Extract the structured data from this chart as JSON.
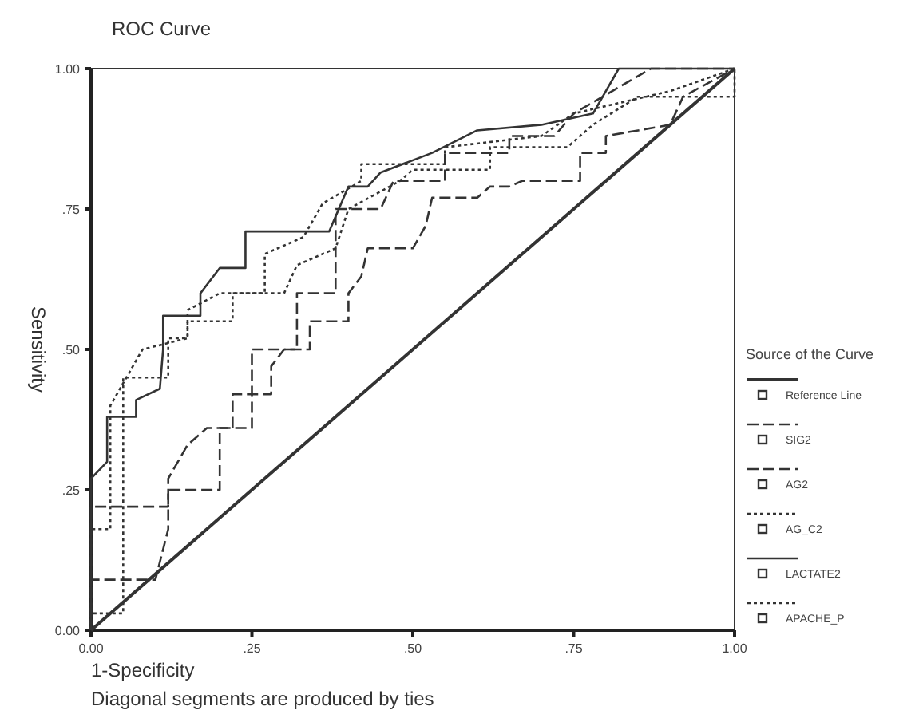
{
  "chart_data": {
    "type": "line",
    "title": "ROC Curve",
    "xlabel": "1-Specificity",
    "ylabel": "Sensitivity",
    "legend_title": "Source of the Curve",
    "annotations": [
      "Diagonal segments are produced by ties"
    ],
    "xlim": [
      0,
      1
    ],
    "ylim": [
      0,
      1
    ],
    "xticks": [
      {
        "value": 0,
        "label": "0.00"
      },
      {
        "value": 0.25,
        "label": ".25"
      },
      {
        "value": 0.5,
        "label": ".50"
      },
      {
        "value": 0.75,
        "label": ".75"
      },
      {
        "value": 1,
        "label": "1.00"
      }
    ],
    "yticks": [
      {
        "value": 0,
        "label": "0.00"
      },
      {
        "value": 0.25,
        "label": ".25"
      },
      {
        "value": 0.5,
        "label": ".50"
      },
      {
        "value": 0.75,
        "label": ".75"
      },
      {
        "value": 1,
        "label": "1.00"
      }
    ],
    "grid": false,
    "legend": "right",
    "marker": "none",
    "series": [
      {
        "name": "Reference Line",
        "color": "#333333",
        "line_style": "solid",
        "x": [
          0,
          1
        ],
        "values": [
          0,
          1
        ]
      },
      {
        "name": "SIG2",
        "color": "#333333",
        "line_style": "dashed",
        "x": [
          0,
          0,
          0.1,
          0.12,
          0.12,
          0.2,
          0.2,
          0.25,
          0.25,
          0.32,
          0.32,
          0.38,
          0.38,
          0.45,
          0.47,
          0.55,
          0.55,
          0.65,
          0.65,
          0.72,
          0.75,
          0.87,
          1
        ],
        "values": [
          0,
          0.09,
          0.09,
          0.18,
          0.25,
          0.25,
          0.36,
          0.36,
          0.5,
          0.5,
          0.6,
          0.6,
          0.75,
          0.75,
          0.8,
          0.8,
          0.85,
          0.85,
          0.88,
          0.88,
          0.92,
          1,
          1
        ]
      },
      {
        "name": "AG2",
        "color": "#333333",
        "line_style": "dashed",
        "x": [
          0,
          0,
          0.12,
          0.12,
          0.15,
          0.18,
          0.22,
          0.22,
          0.28,
          0.28,
          0.3,
          0.34,
          0.34,
          0.4,
          0.4,
          0.42,
          0.43,
          0.5,
          0.52,
          0.53,
          0.6,
          0.62,
          0.65,
          0.67,
          0.76,
          0.76,
          0.8,
          0.8,
          0.9,
          0.92,
          1
        ],
        "values": [
          0,
          0.22,
          0.22,
          0.27,
          0.33,
          0.36,
          0.36,
          0.42,
          0.42,
          0.47,
          0.5,
          0.5,
          0.55,
          0.55,
          0.6,
          0.63,
          0.68,
          0.68,
          0.72,
          0.77,
          0.77,
          0.79,
          0.79,
          0.8,
          0.8,
          0.85,
          0.85,
          0.88,
          0.9,
          0.95,
          1
        ]
      },
      {
        "name": "AG_C2",
        "color": "#333333",
        "line_style": "dotted",
        "x": [
          0,
          0,
          0.03,
          0.03,
          0.08,
          0.15,
          0.15,
          0.2,
          0.27,
          0.27,
          0.33,
          0.36,
          0.42,
          0.42,
          0.55,
          0.55,
          0.7,
          0.75,
          0.9,
          1
        ],
        "values": [
          0,
          0.18,
          0.18,
          0.4,
          0.5,
          0.52,
          0.57,
          0.6,
          0.6,
          0.67,
          0.7,
          0.76,
          0.8,
          0.83,
          0.83,
          0.86,
          0.88,
          0.92,
          0.96,
          1
        ]
      },
      {
        "name": "LACTATE2",
        "color": "#333333",
        "line_style": "solid",
        "x": [
          0,
          0,
          0.025,
          0.025,
          0.07,
          0.07,
          0.107,
          0.112,
          0.112,
          0.17,
          0.17,
          0.2,
          0.24,
          0.24,
          0.37,
          0.4,
          0.43,
          0.45,
          0.53,
          0.6,
          0.7,
          0.78,
          0.82,
          1
        ],
        "values": [
          0,
          0.27,
          0.3,
          0.38,
          0.38,
          0.41,
          0.43,
          0.5,
          0.56,
          0.56,
          0.6,
          0.645,
          0.645,
          0.71,
          0.71,
          0.79,
          0.79,
          0.815,
          0.85,
          0.89,
          0.9,
          0.92,
          1,
          1
        ]
      },
      {
        "name": "APACHE_P",
        "color": "#333333",
        "line_style": "dotted",
        "x": [
          0,
          0,
          0.05,
          0.05,
          0.12,
          0.12,
          0.15,
          0.15,
          0.22,
          0.22,
          0.3,
          0.32,
          0.38,
          0.4,
          0.48,
          0.5,
          0.62,
          0.62,
          0.74,
          0.78,
          0.85,
          1,
          1
        ],
        "values": [
          0,
          0.03,
          0.03,
          0.45,
          0.45,
          0.52,
          0.52,
          0.55,
          0.55,
          0.6,
          0.6,
          0.65,
          0.68,
          0.75,
          0.8,
          0.82,
          0.82,
          0.86,
          0.86,
          0.9,
          0.95,
          0.95,
          1
        ]
      }
    ]
  }
}
